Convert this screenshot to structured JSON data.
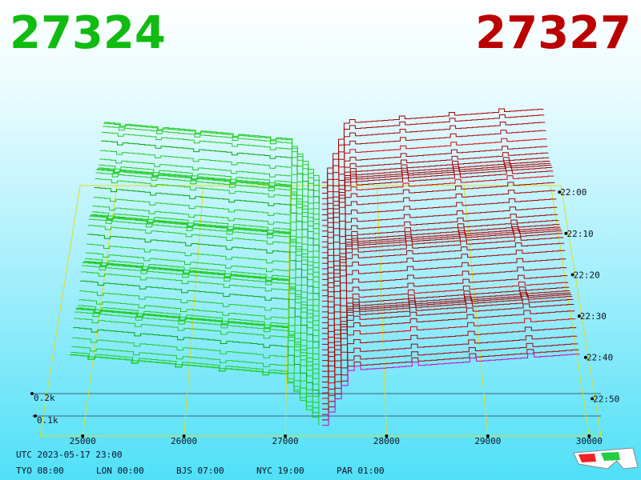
{
  "header": {
    "bid_price": "27324",
    "ask_price": "27327"
  },
  "price_ticks": [
    "25000",
    "26000",
    "27000",
    "28000",
    "29000",
    "30000"
  ],
  "time_labels": [
    "22:00",
    "22:10",
    "22:20",
    "22:30",
    "22:40",
    "22:50"
  ],
  "depth_labels": [
    "0.2k",
    "0.1k"
  ],
  "footer": {
    "utc": "UTC 2023-05-17 23:00",
    "clocks": [
      "TYO 08:00",
      "LON 00:00",
      "BJS 07:00",
      "NYC 19:00",
      "PAR 01:00"
    ]
  }
}
